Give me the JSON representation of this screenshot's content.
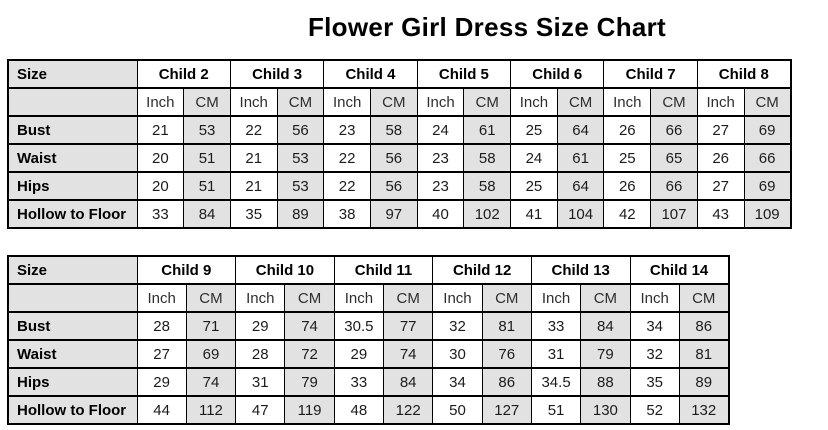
{
  "header": {
    "title": "Flower Girl Dress Size Chart"
  },
  "colors": {
    "shaded_cell": "#e2e2e2",
    "border": "#000000",
    "page_background": "#ffffff",
    "text": "#1c1c1c"
  },
  "chart_data": [
    {
      "type": "table",
      "corner_label": "Size",
      "unit_labels": [
        "Inch",
        "CM"
      ],
      "columns": [
        "Child 2",
        "Child 3",
        "Child 4",
        "Child 5",
        "Child 6",
        "Child 7",
        "Child 8"
      ],
      "rows": [
        {
          "label": "Bust",
          "values_inch_cm": [
            [
              21,
              53
            ],
            [
              22,
              56
            ],
            [
              23,
              58
            ],
            [
              24,
              61
            ],
            [
              25,
              64
            ],
            [
              26,
              66
            ],
            [
              27,
              69
            ]
          ]
        },
        {
          "label": "Waist",
          "values_inch_cm": [
            [
              20,
              51
            ],
            [
              21,
              53
            ],
            [
              22,
              56
            ],
            [
              23,
              58
            ],
            [
              24,
              61
            ],
            [
              25,
              65
            ],
            [
              26,
              66
            ]
          ]
        },
        {
          "label": "Hips",
          "values_inch_cm": [
            [
              20,
              51
            ],
            [
              21,
              53
            ],
            [
              22,
              56
            ],
            [
              23,
              58
            ],
            [
              25,
              64
            ],
            [
              26,
              66
            ],
            [
              27,
              69
            ]
          ]
        },
        {
          "label": "Hollow to Floor",
          "values_inch_cm": [
            [
              33,
              84
            ],
            [
              35,
              89
            ],
            [
              38,
              97
            ],
            [
              40,
              102
            ],
            [
              41,
              104
            ],
            [
              42,
              107
            ],
            [
              43,
              109
            ]
          ]
        }
      ]
    },
    {
      "type": "table",
      "corner_label": "Size",
      "unit_labels": [
        "Inch",
        "CM"
      ],
      "columns": [
        "Child 9",
        "Child 10",
        "Child 11",
        "Child 12",
        "Child 13",
        "Child 14"
      ],
      "rows": [
        {
          "label": "Bust",
          "values_inch_cm": [
            [
              28,
              71
            ],
            [
              29,
              74
            ],
            [
              30.5,
              77
            ],
            [
              32,
              81
            ],
            [
              33,
              84
            ],
            [
              34,
              86
            ]
          ]
        },
        {
          "label": "Waist",
          "values_inch_cm": [
            [
              27,
              69
            ],
            [
              28,
              72
            ],
            [
              29,
              74
            ],
            [
              30,
              76
            ],
            [
              31,
              79
            ],
            [
              32,
              81
            ]
          ]
        },
        {
          "label": "Hips",
          "values_inch_cm": [
            [
              29,
              74
            ],
            [
              31,
              79
            ],
            [
              33,
              84
            ],
            [
              34,
              86
            ],
            [
              34.5,
              88
            ],
            [
              35,
              89
            ]
          ]
        },
        {
          "label": "Hollow to Floor",
          "values_inch_cm": [
            [
              44,
              112
            ],
            [
              47,
              119
            ],
            [
              48,
              122
            ],
            [
              50,
              127
            ],
            [
              51,
              130
            ],
            [
              52,
              132
            ]
          ]
        }
      ]
    }
  ]
}
